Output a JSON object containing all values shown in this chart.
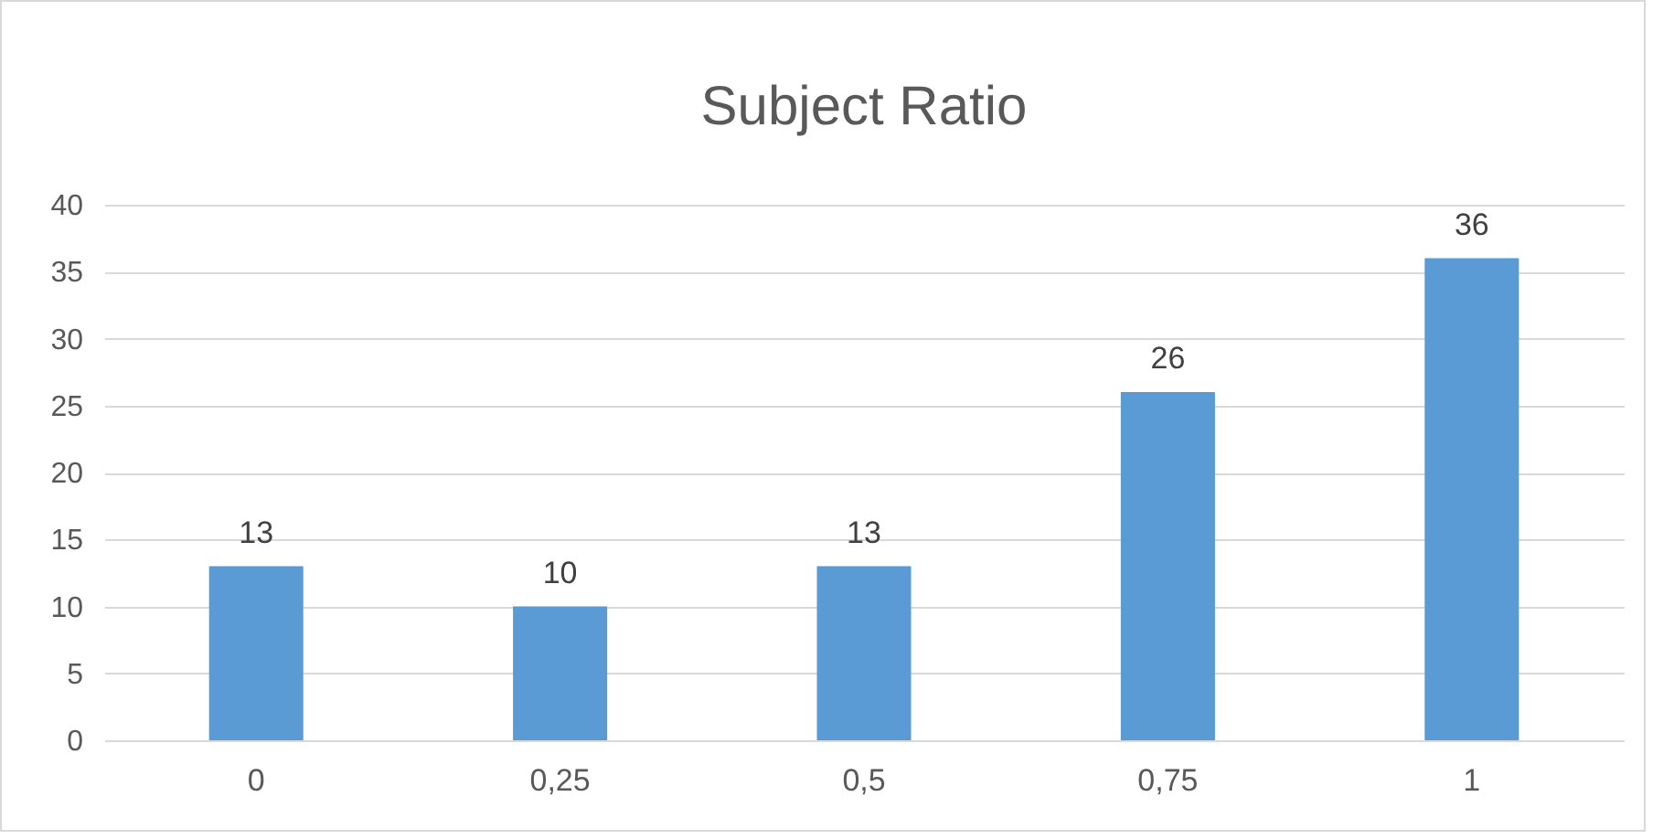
{
  "chart_data": {
    "type": "bar",
    "title": "Subject Ratio",
    "categories": [
      "0",
      "0,25",
      "0,5",
      "0,75",
      "1"
    ],
    "values": [
      13,
      10,
      13,
      26,
      36
    ],
    "color": "#5b9bd5",
    "ylim": [
      0,
      40
    ],
    "yticks": [
      0,
      5,
      10,
      15,
      20,
      25,
      30,
      35,
      40
    ],
    "grid": "y",
    "data_labels": true
  }
}
